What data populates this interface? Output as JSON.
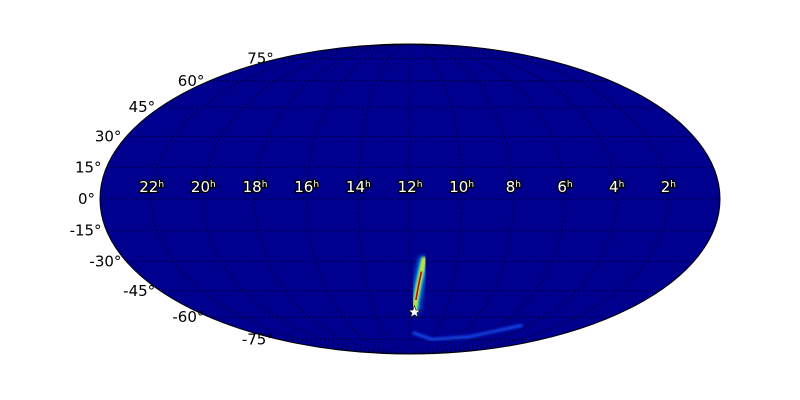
{
  "chart_data": {
    "type": "heatmap",
    "projection": "mollweide",
    "colormap": "jet",
    "background_color": "#00008f",
    "grid": true,
    "ra_tick_labels": [
      "22",
      "20",
      "18",
      "16",
      "14",
      "12",
      "10",
      "8",
      "6",
      "4",
      "2"
    ],
    "ra_tick_values_hours": [
      22,
      20,
      18,
      16,
      14,
      12,
      10,
      8,
      6,
      4,
      2
    ],
    "ra_unit_superscript": "h",
    "dec_tick_labels": [
      "75°",
      "60°",
      "45°",
      "30°",
      "15°",
      "0°",
      "-15°",
      "-30°",
      "-45°",
      "-60°",
      "-75°"
    ],
    "dec_tick_values": [
      75,
      60,
      45,
      30,
      15,
      0,
      -15,
      -30,
      -45,
      -60,
      -75
    ],
    "high_probability_arc": {
      "points_ra_dec": [
        [
          11.4,
          -28
        ],
        [
          11.5,
          -35
        ],
        [
          11.6,
          -42
        ],
        [
          11.7,
          -50
        ],
        [
          11.75,
          -57
        ]
      ],
      "peak_color": "#cc0000"
    },
    "faint_arc_points_ra_dec": [
      [
        11.8,
        -70
      ],
      [
        10,
        -75
      ],
      [
        7,
        -73
      ],
      [
        4.5,
        -65
      ]
    ],
    "marker": {
      "symbol": "star",
      "ra_hours": 11.75,
      "dec": -57,
      "color": "#ffffff"
    }
  }
}
